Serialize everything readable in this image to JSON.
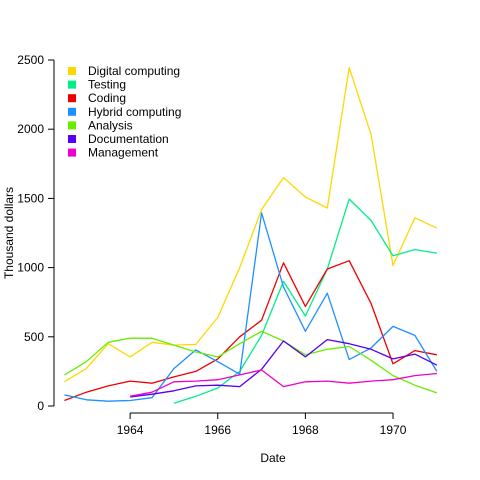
{
  "chart_data": {
    "type": "line",
    "xlabel": "Date",
    "ylabel": "Thousand dollars",
    "xlim": [
      1962.4,
      1971.3
    ],
    "ylim": [
      0,
      2500
    ],
    "x_ticks": [
      1964,
      1966,
      1968,
      1970
    ],
    "y_ticks": [
      0,
      500,
      1000,
      1500,
      2000,
      2500
    ],
    "grid": false,
    "legend_position": "top-left",
    "series": [
      {
        "name": "Digital computing",
        "color": "#FFD700",
        "x": [
          1962.5,
          1963.0,
          1963.5,
          1964.0,
          1964.5,
          1965.0,
          1965.5,
          1966.0,
          1966.5,
          1967.0,
          1967.5,
          1968.0,
          1968.5,
          1969.0,
          1969.5,
          1970.0,
          1970.5,
          1971.0
        ],
        "values": [
          175,
          270,
          450,
          355,
          460,
          440,
          445,
          640,
          1000,
          1420,
          1650,
          1510,
          1430,
          2445,
          1960,
          1015,
          1360,
          1285
        ]
      },
      {
        "name": "Testing",
        "color": "#00EE88",
        "x": [
          1965.0,
          1965.5,
          1966.0,
          1966.5,
          1967.0,
          1967.5,
          1968.0,
          1968.5,
          1969.0,
          1969.5,
          1970.0,
          1970.5,
          1971.0
        ],
        "values": [
          20,
          70,
          130,
          250,
          510,
          900,
          650,
          990,
          1495,
          1340,
          1085,
          1130,
          1105
        ]
      },
      {
        "name": "Coding",
        "color": "#EE0000",
        "x": [
          1962.5,
          1963.0,
          1963.5,
          1964.0,
          1964.5,
          1965.0,
          1965.5,
          1966.0,
          1966.5,
          1967.0,
          1967.5,
          1968.0,
          1968.5,
          1969.0,
          1969.5,
          1970.0,
          1970.5,
          1971.0
        ],
        "values": [
          40,
          100,
          145,
          180,
          165,
          210,
          250,
          340,
          500,
          620,
          1035,
          720,
          990,
          1050,
          740,
          305,
          400,
          370
        ]
      },
      {
        "name": "Hybrid computing",
        "color": "#1E90FF",
        "x": [
          1962.5,
          1963.0,
          1963.5,
          1964.0,
          1964.5,
          1965.0,
          1965.5,
          1966.0,
          1966.5,
          1967.0,
          1967.5,
          1968.0,
          1968.5,
          1969.0,
          1969.5,
          1970.0,
          1970.5,
          1971.0
        ],
        "values": [
          80,
          45,
          35,
          40,
          60,
          270,
          405,
          320,
          230,
          1395,
          860,
          540,
          815,
          335,
          420,
          575,
          510,
          250
        ]
      },
      {
        "name": "Analysis",
        "color": "#66EE00",
        "x": [
          1962.5,
          1963.0,
          1963.5,
          1964.0,
          1964.5,
          1965.0,
          1965.5,
          1966.0,
          1966.5,
          1967.0,
          1967.5,
          1968.0,
          1968.5,
          1969.0,
          1969.5,
          1970.0,
          1970.5,
          1971.0
        ],
        "values": [
          225,
          320,
          460,
          490,
          490,
          440,
          390,
          355,
          450,
          540,
          470,
          370,
          410,
          430,
          330,
          220,
          150,
          95
        ]
      },
      {
        "name": "Documentation",
        "color": "#5500EE",
        "x": [
          1964.0,
          1964.5,
          1965.0,
          1965.5,
          1966.0,
          1966.5,
          1967.0,
          1967.5,
          1968.0,
          1968.5,
          1969.0,
          1969.5,
          1970.0,
          1970.5,
          1971.0
        ],
        "values": [
          65,
          85,
          110,
          145,
          150,
          140,
          265,
          470,
          355,
          480,
          450,
          410,
          340,
          375,
          295
        ]
      },
      {
        "name": "Management",
        "color": "#EE00CC",
        "x": [
          1964.0,
          1964.5,
          1965.0,
          1965.5,
          1966.0,
          1966.5,
          1967.0,
          1967.5,
          1968.0,
          1968.5,
          1969.0,
          1969.5,
          1970.0,
          1970.5,
          1971.0
        ],
        "values": [
          70,
          100,
          175,
          180,
          190,
          225,
          260,
          140,
          175,
          180,
          165,
          180,
          190,
          220,
          235
        ]
      }
    ]
  }
}
